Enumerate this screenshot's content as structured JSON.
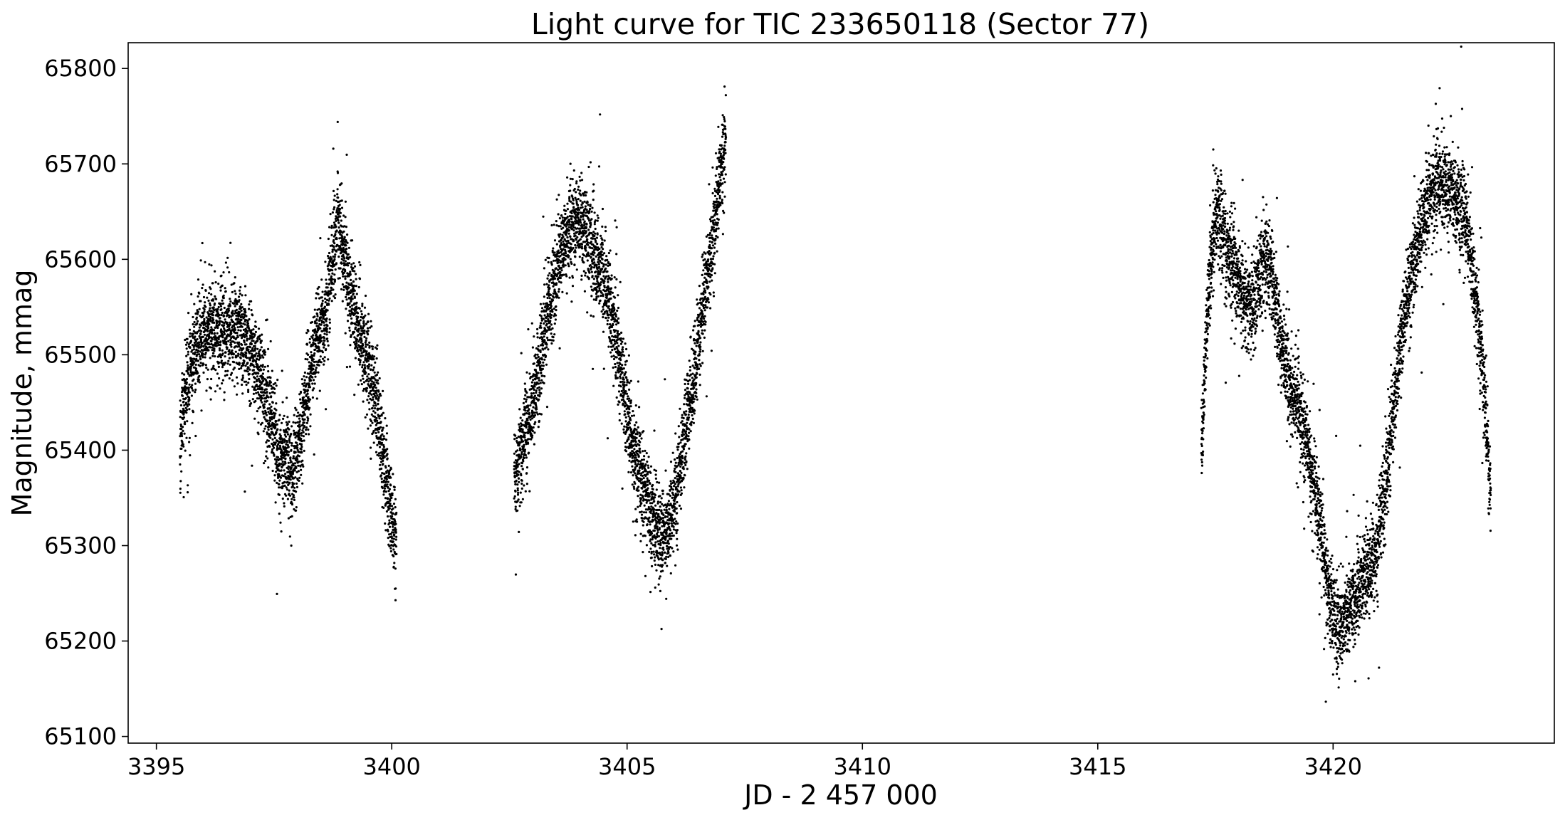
{
  "chart_data": {
    "type": "scatter",
    "title": "Light curve for TIC 233650118 (Sector 77)",
    "xlabel": "JD - 2 457 000",
    "ylabel": "Magnitude, mmag",
    "xlim": [
      3394.4,
      3424.7
    ],
    "ylim": [
      65093,
      65827
    ],
    "x_ticks": [
      3395,
      3400,
      3405,
      3410,
      3415,
      3420
    ],
    "y_ticks": [
      65100,
      65200,
      65300,
      65400,
      65500,
      65600,
      65700,
      65800
    ],
    "grid": false,
    "marker_color": "#000000",
    "series": [
      {
        "segments": [
          {
            "x": [
              3395.5,
              3395.6,
              3395.8,
              3396.0,
              3396.3,
              3396.6,
              3396.9,
              3397.1,
              3397.3,
              3397.6,
              3397.9,
              3398.1,
              3398.3,
              3398.6,
              3398.85,
              3399.1,
              3399.4,
              3399.7,
              3399.9,
              3400.1
            ],
            "y": [
              65400,
              65460,
              65500,
              65525,
              65530,
              65525,
              65515,
              65495,
              65460,
              65400,
              65380,
              65430,
              65495,
              65540,
              65640,
              65570,
              65510,
              65440,
              65360,
              65300
            ]
          },
          {
            "x": [
              3402.6,
              3402.8,
              3403.0,
              3403.3,
              3403.6,
              3403.9,
              3404.2,
              3404.5,
              3404.8,
              3405.1,
              3405.4,
              3405.7,
              3405.9,
              3406.2,
              3406.5,
              3406.8,
              3407.0,
              3407.1
            ],
            "y": [
              65370,
              65410,
              65450,
              65540,
              65610,
              65640,
              65615,
              65580,
              65510,
              65410,
              65350,
              65310,
              65320,
              65400,
              65510,
              65610,
              65700,
              65720
            ]
          },
          {
            "x": [
              3417.2,
              3417.35,
              3417.5,
              3417.7,
              3417.9,
              3418.1,
              3418.3,
              3418.5,
              3418.7,
              3418.9,
              3419.1,
              3419.4,
              3419.7,
              3419.9,
              3420.1,
              3420.3,
              3420.6,
              3420.9,
              3421.2,
              3421.5,
              3421.8,
              3422.0,
              3422.2,
              3422.5,
              3422.8,
              3423.0,
              3423.2,
              3423.35
            ],
            "y": [
              65400,
              65560,
              65650,
              65620,
              65590,
              65560,
              65545,
              65600,
              65580,
              65510,
              65470,
              65420,
              65330,
              65250,
              65210,
              65230,
              65260,
              65290,
              65400,
              65540,
              65620,
              65660,
              65680,
              65670,
              65650,
              65570,
              65470,
              65350
            ]
          }
        ]
      }
    ]
  }
}
